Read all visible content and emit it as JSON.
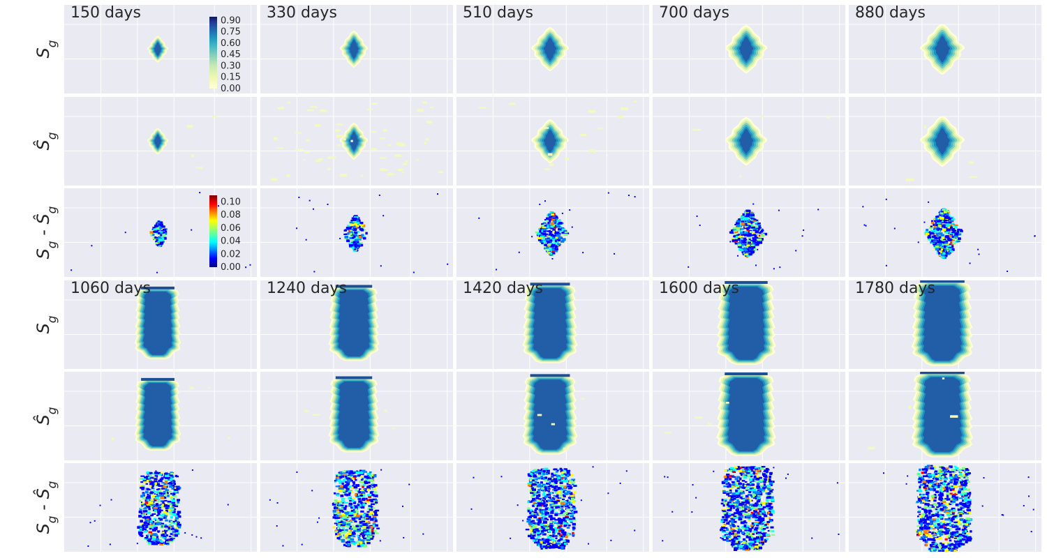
{
  "figure": {
    "row_labels": {
      "true": "S",
      "pred": "Ŝ",
      "diff_a": "S",
      "diff_b": " - Ŝ",
      "sub": "g"
    }
  },
  "chart_data": {
    "type": "heatmap",
    "description_note": "",
    "time_steps": [
      {
        "label": "150 days",
        "width_frac": 0.09,
        "height_frac": 0.3,
        "shape": "diamond",
        "pred_noise": "low",
        "diff_intensity": 0.02
      },
      {
        "label": "330 days",
        "width_frac": 0.12,
        "height_frac": 0.42,
        "shape": "diamond",
        "pred_noise": "high",
        "diff_intensity": 0.05
      },
      {
        "label": "510 days",
        "width_frac": 0.16,
        "height_frac": 0.5,
        "shape": "diamond",
        "pred_noise": "medium",
        "diff_intensity": 0.06
      },
      {
        "label": "700 days",
        "width_frac": 0.18,
        "height_frac": 0.55,
        "shape": "diamond",
        "pred_noise": "low",
        "diff_intensity": 0.07
      },
      {
        "label": "880 days",
        "width_frac": 0.19,
        "height_frac": 0.58,
        "shape": "diamond",
        "pred_noise": "low",
        "diff_intensity": 0.07
      },
      {
        "label": "1060 days",
        "width_frac": 0.21,
        "height_frac": 0.65,
        "shape": "column",
        "pred_noise": "low",
        "diff_intensity": 0.08
      },
      {
        "label": "1240 days",
        "width_frac": 0.23,
        "height_frac": 0.68,
        "shape": "column",
        "pred_noise": "low",
        "diff_intensity": 0.09
      },
      {
        "label": "1420 days",
        "width_frac": 0.25,
        "height_frac": 0.72,
        "shape": "column",
        "pred_noise": "low",
        "diff_intensity": 0.09
      },
      {
        "label": "1600 days",
        "width_frac": 0.27,
        "height_frac": 0.75,
        "shape": "column",
        "pred_noise": "low",
        "diff_intensity": 0.09
      },
      {
        "label": "1780 days",
        "width_frac": 0.28,
        "height_frac": 0.77,
        "shape": "column",
        "pred_noise": "low",
        "diff_intensity": 0.1
      }
    ],
    "rows": [
      "Sg",
      "Sg_hat",
      "Sg - Sg_hat"
    ],
    "colorbars": [
      {
        "name": "saturation",
        "colormap": "YlGnBu",
        "ticks": [
          "0.90",
          "0.75",
          "0.60",
          "0.45",
          "0.30",
          "0.15",
          "0.00"
        ],
        "range": [
          0,
          0.95
        ]
      },
      {
        "name": "error",
        "colormap": "jet",
        "ticks": [
          "0.10",
          "0.08",
          "0.06",
          "0.04",
          "0.02",
          "0.00"
        ],
        "range": [
          0,
          0.11
        ]
      }
    ],
    "grid": true,
    "colors": {
      "panel_bg": "#eaeaf2",
      "grid": "#ffffff",
      "ylgnbu": [
        "#ffffd9",
        "#edf8b1",
        "#c7e9b4",
        "#7fcdbb",
        "#41b6c4",
        "#1d91c0",
        "#225ea8",
        "#253494",
        "#081d58"
      ],
      "jet": [
        "#00007f",
        "#0000ff",
        "#0080ff",
        "#00ffff",
        "#80ff80",
        "#ffff00",
        "#ff8000",
        "#ff0000",
        "#7f0000"
      ]
    }
  }
}
